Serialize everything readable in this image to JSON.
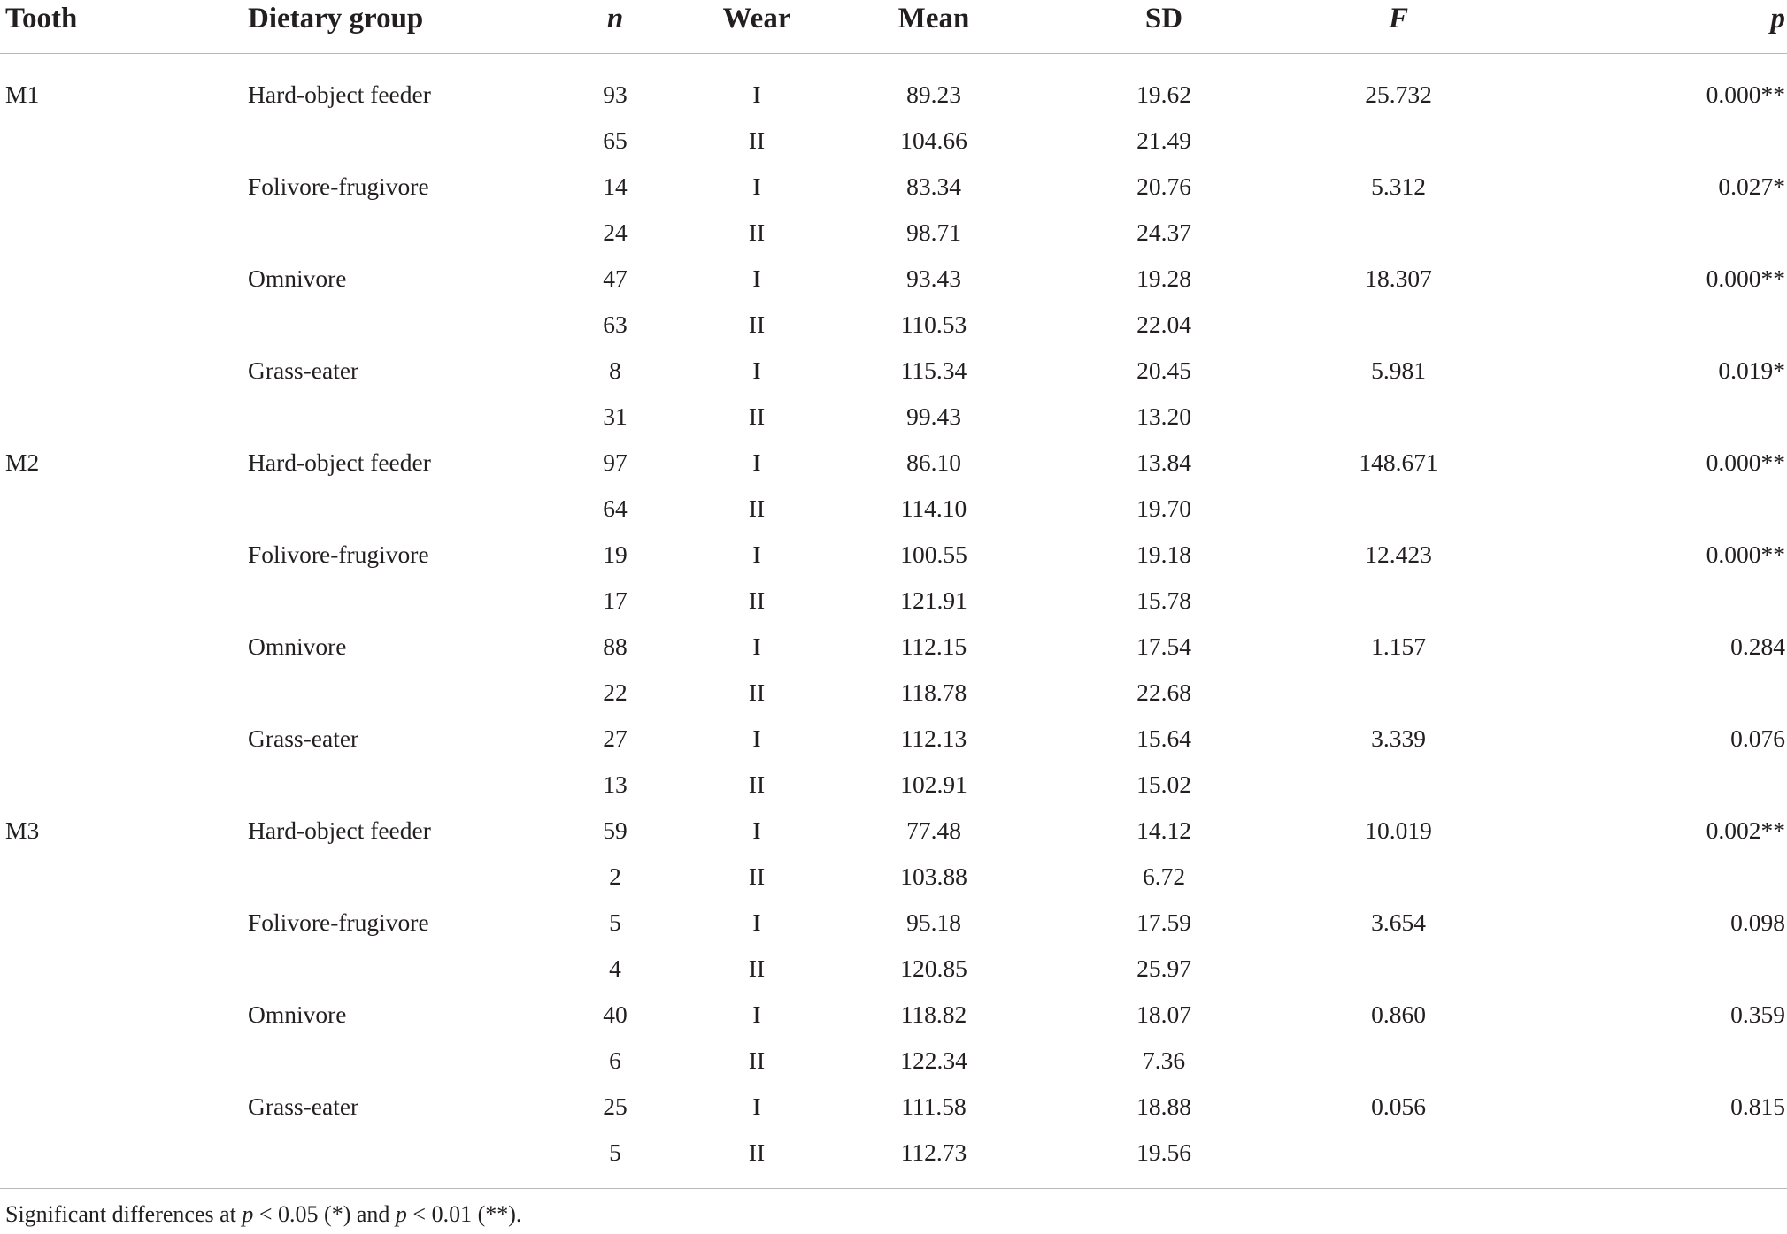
{
  "table": {
    "headers": [
      "Tooth",
      "Dietary group",
      "n",
      "Wear",
      "Mean",
      "SD",
      "F",
      "p"
    ],
    "rows": [
      {
        "tooth": "M1",
        "group": "Hard-object feeder",
        "n": "93",
        "wear": "I",
        "mean": "89.23",
        "sd": "19.62",
        "f": "25.732",
        "p": "0.000**"
      },
      {
        "tooth": "",
        "group": "",
        "n": "65",
        "wear": "II",
        "mean": "104.66",
        "sd": "21.49",
        "f": "",
        "p": ""
      },
      {
        "tooth": "",
        "group": "Folivore-frugivore",
        "n": "14",
        "wear": "I",
        "mean": "83.34",
        "sd": "20.76",
        "f": "5.312",
        "p": "0.027*"
      },
      {
        "tooth": "",
        "group": "",
        "n": "24",
        "wear": "II",
        "mean": "98.71",
        "sd": "24.37",
        "f": "",
        "p": ""
      },
      {
        "tooth": "",
        "group": "Omnivore",
        "n": "47",
        "wear": "I",
        "mean": "93.43",
        "sd": "19.28",
        "f": "18.307",
        "p": "0.000**"
      },
      {
        "tooth": "",
        "group": "",
        "n": "63",
        "wear": "II",
        "mean": "110.53",
        "sd": "22.04",
        "f": "",
        "p": ""
      },
      {
        "tooth": "",
        "group": "Grass-eater",
        "n": "8",
        "wear": "I",
        "mean": "115.34",
        "sd": "20.45",
        "f": "5.981",
        "p": "0.019*"
      },
      {
        "tooth": "",
        "group": "",
        "n": "31",
        "wear": "II",
        "mean": "99.43",
        "sd": "13.20",
        "f": "",
        "p": ""
      },
      {
        "tooth": "M2",
        "group": "Hard-object feeder",
        "n": "97",
        "wear": "I",
        "mean": "86.10",
        "sd": "13.84",
        "f": "148.671",
        "p": "0.000**"
      },
      {
        "tooth": "",
        "group": "",
        "n": "64",
        "wear": "II",
        "mean": "114.10",
        "sd": "19.70",
        "f": "",
        "p": ""
      },
      {
        "tooth": "",
        "group": "Folivore-frugivore",
        "n": "19",
        "wear": "I",
        "mean": "100.55",
        "sd": "19.18",
        "f": "12.423",
        "p": "0.000**"
      },
      {
        "tooth": "",
        "group": "",
        "n": "17",
        "wear": "II",
        "mean": "121.91",
        "sd": "15.78",
        "f": "",
        "p": ""
      },
      {
        "tooth": "",
        "group": "Omnivore",
        "n": "88",
        "wear": "I",
        "mean": "112.15",
        "sd": "17.54",
        "f": "1.157",
        "p": "0.284"
      },
      {
        "tooth": "",
        "group": "",
        "n": "22",
        "wear": "II",
        "mean": "118.78",
        "sd": "22.68",
        "f": "",
        "p": ""
      },
      {
        "tooth": "",
        "group": "Grass-eater",
        "n": "27",
        "wear": "I",
        "mean": "112.13",
        "sd": "15.64",
        "f": "3.339",
        "p": "0.076"
      },
      {
        "tooth": "",
        "group": "",
        "n": "13",
        "wear": "II",
        "mean": "102.91",
        "sd": "15.02",
        "f": "",
        "p": ""
      },
      {
        "tooth": "M3",
        "group": "Hard-object feeder",
        "n": "59",
        "wear": "I",
        "mean": "77.48",
        "sd": "14.12",
        "f": "10.019",
        "p": "0.002**"
      },
      {
        "tooth": "",
        "group": "",
        "n": "2",
        "wear": "II",
        "mean": "103.88",
        "sd": "6.72",
        "f": "",
        "p": ""
      },
      {
        "tooth": "",
        "group": "Folivore-frugivore",
        "n": "5",
        "wear": "I",
        "mean": "95.18",
        "sd": "17.59",
        "f": "3.654",
        "p": "0.098"
      },
      {
        "tooth": "",
        "group": "",
        "n": "4",
        "wear": "II",
        "mean": "120.85",
        "sd": "25.97",
        "f": "",
        "p": ""
      },
      {
        "tooth": "",
        "group": "Omnivore",
        "n": "40",
        "wear": "I",
        "mean": "118.82",
        "sd": "18.07",
        "f": "0.860",
        "p": "0.359"
      },
      {
        "tooth": "",
        "group": "",
        "n": "6",
        "wear": "II",
        "mean": "122.34",
        "sd": "7.36",
        "f": "",
        "p": ""
      },
      {
        "tooth": "",
        "group": "Grass-eater",
        "n": "25",
        "wear": "I",
        "mean": "111.58",
        "sd": "18.88",
        "f": "0.056",
        "p": "0.815"
      },
      {
        "tooth": "",
        "group": "",
        "n": "5",
        "wear": "II",
        "mean": "112.73",
        "sd": "19.56",
        "f": "",
        "p": ""
      }
    ]
  },
  "footnote": {
    "prefix": "Significant differences at ",
    "p1": "p",
    "cond1": " < 0.05 (*) and ",
    "p2": "p",
    "cond2": " < 0.01 (**)."
  }
}
